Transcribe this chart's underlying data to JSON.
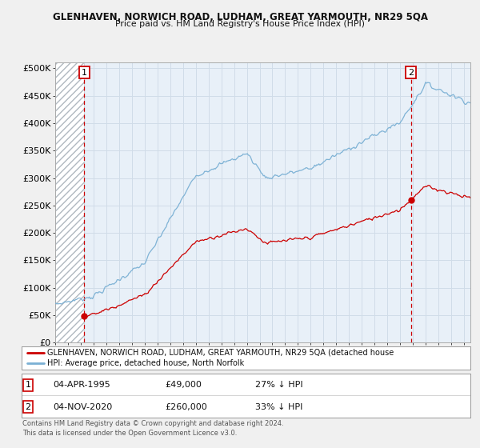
{
  "title1": "GLENHAVEN, NORWICH ROAD, LUDHAM, GREAT YARMOUTH, NR29 5QA",
  "title2": "Price paid vs. HM Land Registry's House Price Index (HPI)",
  "ylabel_ticks": [
    "£0",
    "£50K",
    "£100K",
    "£150K",
    "£200K",
    "£250K",
    "£300K",
    "£350K",
    "£400K",
    "£450K",
    "£500K"
  ],
  "ytick_values": [
    0,
    50000,
    100000,
    150000,
    200000,
    250000,
    300000,
    350000,
    400000,
    450000,
    500000
  ],
  "ylim": [
    0,
    510000
  ],
  "xlim_start": 1993,
  "xlim_end": 2025.5,
  "purchase1_x": 1995.27,
  "purchase1_y": 49000,
  "purchase2_x": 2020.84,
  "purchase2_y": 260000,
  "legend_line1": "GLENHAVEN, NORWICH ROAD, LUDHAM, GREAT YARMOUTH, NR29 5QA (detached house",
  "legend_line2": "HPI: Average price, detached house, North Norfolk",
  "annotation1_date": "04-APR-1995",
  "annotation1_price": "£49,000",
  "annotation1_hpi": "27% ↓ HPI",
  "annotation2_date": "04-NOV-2020",
  "annotation2_price": "£260,000",
  "annotation2_hpi": "33% ↓ HPI",
  "copyright": "Contains HM Land Registry data © Crown copyright and database right 2024.\nThis data is licensed under the Open Government Licence v3.0.",
  "line_color_red": "#cc0000",
  "line_color_blue": "#7ab0d4",
  "grid_color": "#d0dce8",
  "plot_bg_color": "#e8f0f8",
  "fig_bg_color": "#f0f0f0"
}
